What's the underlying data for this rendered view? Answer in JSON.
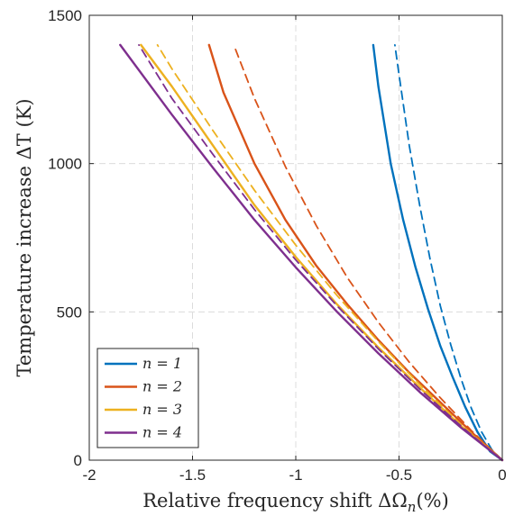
{
  "chart_data": {
    "type": "line",
    "xlabel": "Relative frequency shift ΔΩ",
    "xlabel_sub": "n",
    "xlabel_unit": "(%)",
    "ylabel": "Temperature increase ΔT (K)",
    "xlim": [
      -2,
      0
    ],
    "ylim": [
      0,
      1500
    ],
    "xticks": [
      -2,
      -1.5,
      -1,
      -0.5,
      0
    ],
    "xtick_labels": [
      "-2",
      "-1.5",
      "-1",
      "-0.5",
      "0"
    ],
    "yticks": [
      0,
      500,
      1000,
      1500
    ],
    "ytick_labels": [
      "0",
      "500",
      "1000",
      "1500"
    ],
    "grid": true,
    "legend_position": "bottom-left",
    "series": [
      {
        "name": "n = 1",
        "style": "solid",
        "color": "#0072BD",
        "x": [
          0,
          -0.06,
          -0.12,
          -0.18,
          -0.24,
          -0.3,
          -0.36,
          -0.42,
          -0.48,
          -0.54,
          -0.6,
          -0.625
        ],
        "y": [
          0,
          30,
          95,
          180,
          280,
          385,
          510,
          650,
          810,
          1000,
          1260,
          1400
        ]
      },
      {
        "name": "",
        "style": "dashed",
        "color": "#0072BD",
        "x": [
          0,
          -0.05,
          -0.1,
          -0.15,
          -0.2,
          -0.25,
          -0.3,
          -0.35,
          -0.4,
          -0.45,
          -0.5,
          -0.52
        ],
        "y": [
          0,
          35,
          95,
          175,
          275,
          390,
          520,
          680,
          860,
          1060,
          1300,
          1400
        ]
      },
      {
        "name": "n = 2",
        "style": "solid",
        "color": "#D95319",
        "x": [
          0,
          -0.15,
          -0.3,
          -0.45,
          -0.6,
          -0.75,
          -0.9,
          -1.05,
          -1.2,
          -1.35,
          -1.42
        ],
        "y": [
          0,
          95,
          195,
          295,
          405,
          525,
          655,
          810,
          1000,
          1240,
          1400
        ]
      },
      {
        "name": "",
        "style": "dashed",
        "color": "#D95319",
        "x": [
          0,
          -0.15,
          -0.3,
          -0.45,
          -0.6,
          -0.75,
          -0.9,
          -1.05,
          -1.2,
          -1.3
        ],
        "y": [
          0,
          100,
          210,
          330,
          465,
          615,
          790,
          990,
          1220,
          1400
        ]
      },
      {
        "name": "n = 3",
        "style": "solid",
        "color": "#EDB120",
        "x": [
          0,
          -0.2,
          -0.4,
          -0.6,
          -0.8,
          -1.0,
          -1.2,
          -1.4,
          -1.6,
          -1.75
        ],
        "y": [
          0,
          115,
          245,
          380,
          525,
          685,
          860,
          1060,
          1260,
          1400
        ]
      },
      {
        "name": "",
        "style": "dashed",
        "color": "#EDB120",
        "x": [
          0,
          -0.2,
          -0.4,
          -0.6,
          -0.8,
          -1.0,
          -1.2,
          -1.4,
          -1.6,
          -1.67
        ],
        "y": [
          0,
          120,
          255,
          400,
          555,
          725,
          910,
          1110,
          1320,
          1400
        ]
      },
      {
        "name": "n = 4",
        "style": "solid",
        "color": "#7E2F8E",
        "x": [
          0,
          -0.2,
          -0.4,
          -0.6,
          -0.8,
          -1.0,
          -1.2,
          -1.4,
          -1.6,
          -1.85
        ],
        "y": [
          0,
          110,
          230,
          360,
          500,
          650,
          810,
          985,
          1165,
          1400
        ]
      },
      {
        "name": "",
        "style": "dashed",
        "color": "#7E2F8E",
        "x": [
          0,
          -0.2,
          -0.4,
          -0.6,
          -0.8,
          -1.0,
          -1.2,
          -1.4,
          -1.6,
          -1.76
        ],
        "y": [
          0,
          115,
          240,
          375,
          520,
          675,
          845,
          1030,
          1220,
          1400
        ]
      }
    ]
  }
}
